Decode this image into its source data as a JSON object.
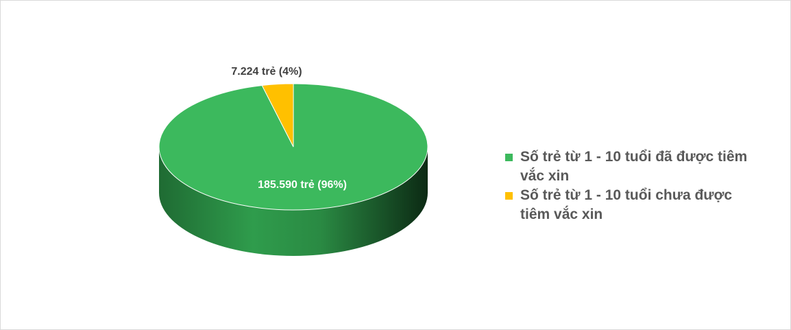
{
  "chart_data": {
    "type": "pie",
    "categories": [
      "Số trẻ từ 1 - 10 tuổi đã được tiêm vắc xin",
      "Số trẻ từ 1 - 10 tuổi chưa được tiêm vắc xin"
    ],
    "values": [
      185590,
      7224
    ],
    "value_labels": [
      "185.590 trẻ (96%)",
      "7.224 trẻ (4%)"
    ],
    "colors": [
      "#3cb95d",
      "#ffc000"
    ],
    "legend": "right"
  }
}
